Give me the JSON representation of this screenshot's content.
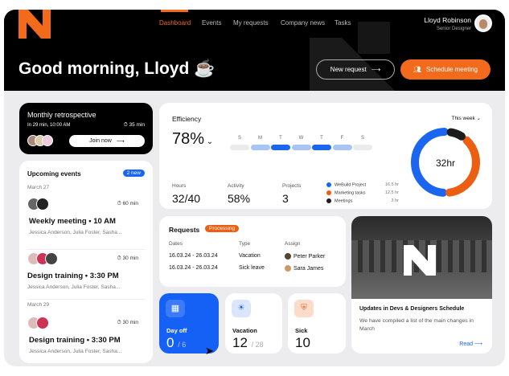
{
  "nav": {
    "items": [
      "Dashboard",
      "Events",
      "My requests",
      "Company news",
      "Tasks"
    ],
    "active": "Dashboard"
  },
  "user": {
    "name": "Lloyd Robinson",
    "role": "Senior Designer"
  },
  "greeting": "Good morning, Lloyd ☕",
  "actions": {
    "new_request": "New request",
    "schedule": "Schedule meeting"
  },
  "retro": {
    "title": "Monthly retrospective",
    "time": "In 29 min, 10:00 AM",
    "duration": "35 min",
    "join": "Join now"
  },
  "events": {
    "title": "Upcoming events",
    "badge": "2 new",
    "groups": [
      {
        "date": "March 27",
        "items": [
          {
            "title": "Weekly meeting • 10 AM",
            "duration": "60 min",
            "people": "Jessica Anderson, Julia Foster, Sasha..."
          },
          {
            "title": "Design training • 3:30 PM",
            "duration": "30 min",
            "people": "Jessica Anderson, Julia Foster, Sasha..."
          }
        ]
      },
      {
        "date": "March 29",
        "items": [
          {
            "title": "Design training • 3:30 PM",
            "duration": "30 min",
            "people": "Jessica Anderson, Julia Foster, Sasha..."
          }
        ]
      }
    ]
  },
  "efficiency": {
    "title": "Efficiency",
    "value": "78%",
    "period": "This week",
    "days": [
      "S",
      "M",
      "T",
      "W",
      "T",
      "F",
      "S"
    ],
    "day_levels": [
      "none",
      "light",
      "full",
      "light",
      "full",
      "light",
      "none"
    ],
    "stats": [
      {
        "label": "Hours",
        "value": "32/40"
      },
      {
        "label": "Activity",
        "value": "58%"
      },
      {
        "label": "Projects",
        "value": "3"
      }
    ],
    "legend": [
      {
        "name": "WeBuild Project",
        "hours": "16,5 hr",
        "color": "#1a66f0"
      },
      {
        "name": "Marketing tasks",
        "hours": "12,5 hr",
        "color": "#ec5e12"
      },
      {
        "name": "Meetings",
        "hours": "3 hr",
        "color": "#1c1c1c"
      }
    ],
    "total": "32hr"
  },
  "requests": {
    "title": "Requests",
    "status": "Processing",
    "headers": [
      "Dates",
      "Type",
      "Assign"
    ],
    "rows": [
      {
        "dates": "16.03.24 - 26.03.24",
        "type": "Vacation",
        "assign": "Peter Parker"
      },
      {
        "dates": "16.03.24 - 26.03.24",
        "type": "Sick leave",
        "assign": "Sara James"
      }
    ]
  },
  "balances": [
    {
      "label": "Day off",
      "value": "0",
      "total": "/ 6"
    },
    {
      "label": "Vacation",
      "value": "12",
      "total": "/ 28"
    },
    {
      "label": "Sick",
      "value": "10",
      "total": ""
    }
  ],
  "news": {
    "title": "Updates in Devs & Designers Schedule",
    "body": "We have compiled a list of the main changes in March",
    "read": "Read"
  }
}
